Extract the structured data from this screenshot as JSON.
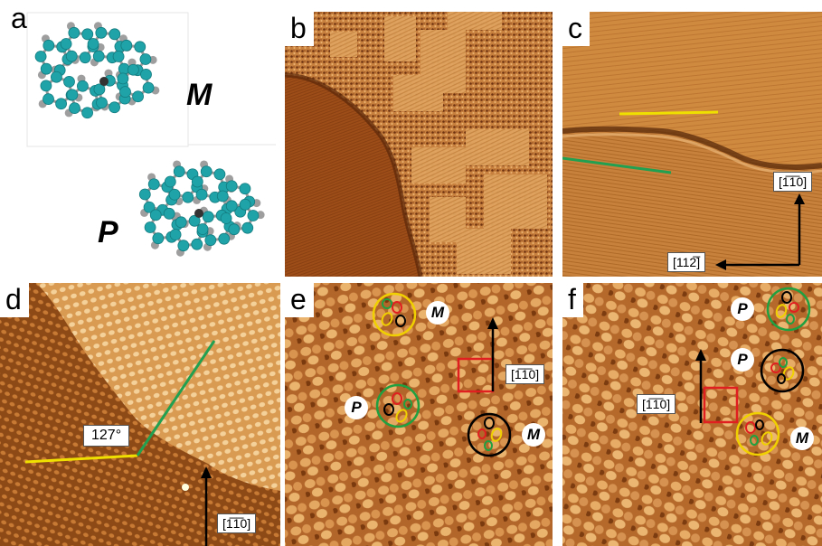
{
  "panels": {
    "a": {
      "label": "a",
      "molecule_top": "M",
      "molecule_bottom": "P"
    },
    "b": {
      "label": "b"
    },
    "c": {
      "label": "c",
      "dir_vertical": "[1̅1̅0]",
      "dir_horizontal": "[112̅]"
    },
    "d": {
      "label": "d",
      "angle": "127°",
      "dir": "[1̅1̅0]"
    },
    "e": {
      "label": "e",
      "dir": "[1̅1̅0]",
      "marker_top": "M",
      "marker_mid": "P",
      "marker_bottom": "M"
    },
    "f": {
      "label": "f",
      "dir": "[1̅1̅0]",
      "marker_top": "P",
      "marker_mid": "P",
      "marker_bottom": "M"
    }
  },
  "colors": {
    "atom_carbon": "#1fa3a8",
    "atom_hydrogen": "#9e9e9e",
    "stm_light": "#e8ad67",
    "stm_dark": "#8a4110",
    "line_yellow": "#f0e000",
    "line_green": "#20a050",
    "marker_red": "#e02020",
    "circle_yellow": "#f0d000",
    "circle_green": "#20a040",
    "circle_black": "#000000"
  }
}
